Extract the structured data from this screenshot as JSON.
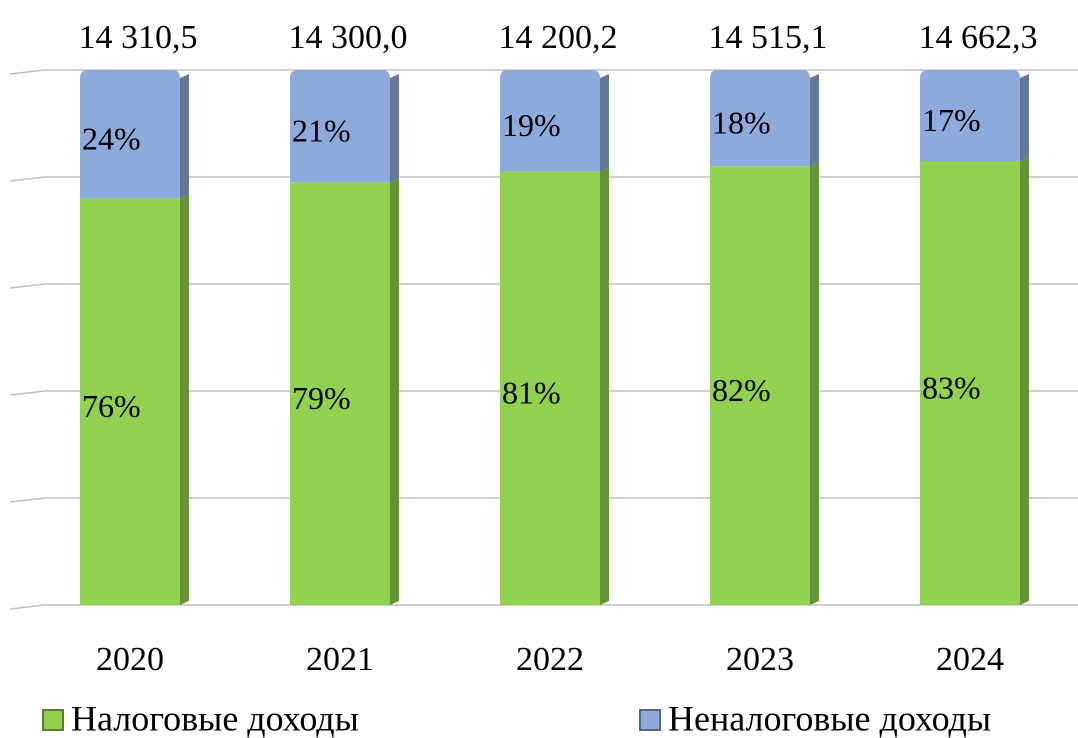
{
  "chart_data": {
    "type": "stacked_bar",
    "categories": [
      "2020",
      "2021",
      "2022",
      "2023",
      "2024"
    ],
    "annotations": [
      "14 310,5",
      "14 300,0",
      "14 200,2",
      "14 515,1",
      "14 662,3"
    ],
    "series": [
      {
        "name": "Налоговые доходы",
        "color": "#92d050",
        "values": [
          76,
          79,
          81,
          82,
          83
        ],
        "value_labels": [
          "76%",
          "79%",
          "81%",
          "82%",
          "83%"
        ]
      },
      {
        "name": "Неналоговые доходы",
        "color": "#8eaadb",
        "values": [
          24,
          21,
          19,
          18,
          17
        ],
        "value_labels": [
          "24%",
          "21%",
          "19%",
          "18%",
          "17%"
        ]
      }
    ],
    "ylim": [
      0,
      100
    ],
    "yticks": [
      0,
      20,
      40,
      60,
      80,
      100
    ],
    "grid": true,
    "ytick_labels": false,
    "legend": "bottom"
  }
}
